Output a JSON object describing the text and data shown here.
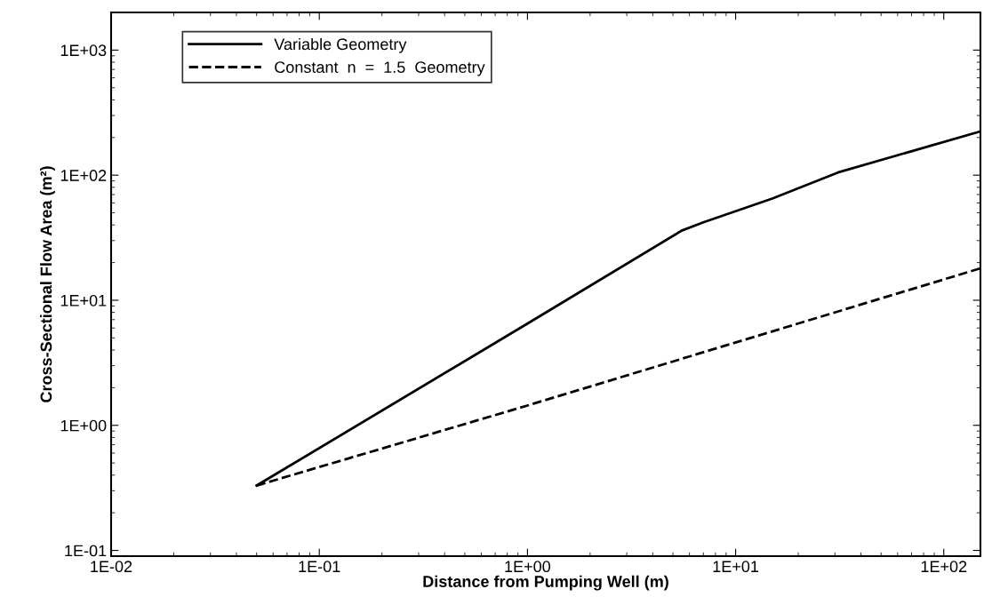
{
  "chart_data": {
    "type": "line",
    "xlabel": "Distance from Pumping Well (m)",
    "ylabel": "Cross-Sectional Flow Area (m²)",
    "log": "xy",
    "grid": false,
    "legend": "top left",
    "xlim": [
      0.01,
      150
    ],
    "ylim": [
      0.09,
      2000
    ],
    "xticks": [
      {
        "value": 0.01,
        "label": "1E-02"
      },
      {
        "value": 0.1,
        "label": "1E-01"
      },
      {
        "value": 1,
        "label": "1E+00"
      },
      {
        "value": 10,
        "label": "1E+01"
      },
      {
        "value": 100,
        "label": "1E+02"
      }
    ],
    "yticks": [
      {
        "value": 0.1,
        "label": "1E-01"
      },
      {
        "value": 1,
        "label": "1E+00"
      },
      {
        "value": 10,
        "label": "1E+01"
      },
      {
        "value": 100,
        "label": "1E+02"
      },
      {
        "value": 1000,
        "label": "1E+03"
      }
    ],
    "series": [
      {
        "name": "Variable Geometry",
        "color": "#000000",
        "line_style": "solid",
        "x": [
          0.05,
          1,
          5.5,
          7,
          15,
          31,
          150
        ],
        "values": [
          0.33,
          6.5,
          36,
          42,
          65,
          105,
          224
        ]
      },
      {
        "name": "Constant  n  =  1.5  Geometry",
        "color": "#000000",
        "line_style": "dashed",
        "x": [
          0.05,
          1,
          150
        ],
        "values": [
          0.33,
          1.44,
          18
        ]
      }
    ]
  }
}
